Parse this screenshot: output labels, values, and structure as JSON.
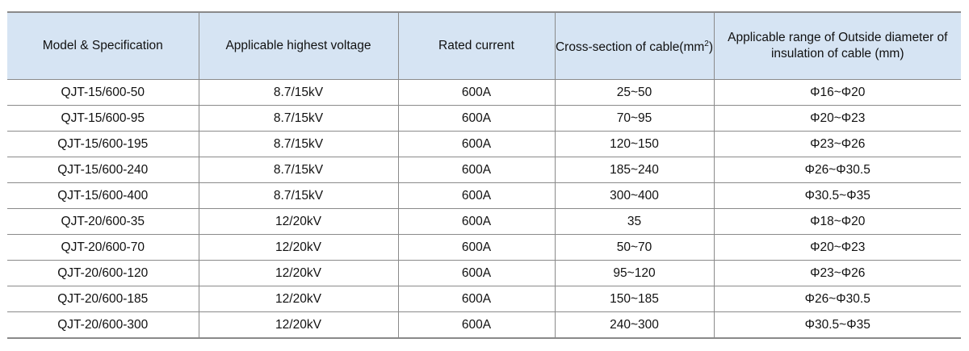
{
  "table": {
    "headers": [
      "Model & Specification",
      "Applicable highest voltage",
      "Rated current",
      "Cross-section of cable(mm",
      "Applicable range of Outside diameter of insulation of cable (mm)"
    ],
    "header_sup": "2",
    "header_tail": ")",
    "rows": [
      [
        "QJT-15/600-50",
        "8.7/15kV",
        "600A",
        "25~50",
        "Φ16~Φ20"
      ],
      [
        "QJT-15/600-95",
        "8.7/15kV",
        "600A",
        "70~95",
        "Φ20~Φ23"
      ],
      [
        "QJT-15/600-195",
        "8.7/15kV",
        "600A",
        "120~150",
        "Φ23~Φ26"
      ],
      [
        "QJT-15/600-240",
        "8.7/15kV",
        "600A",
        "185~240",
        "Φ26~Φ30.5"
      ],
      [
        "QJT-15/600-400",
        "8.7/15kV",
        "600A",
        "300~400",
        "Φ30.5~Φ35"
      ],
      [
        "QJT-20/600-35",
        "12/20kV",
        "600A",
        "35",
        "Φ18~Φ20"
      ],
      [
        "QJT-20/600-70",
        "12/20kV",
        "600A",
        "50~70",
        "Φ20~Φ23"
      ],
      [
        "QJT-20/600-120",
        "12/20kV",
        "600A",
        "95~120",
        "Φ23~Φ26"
      ],
      [
        "QJT-20/600-185",
        "12/20kV",
        "600A",
        "150~185",
        "Φ26~Φ30.5"
      ],
      [
        "QJT-20/600-300",
        "12/20kV",
        "600A",
        "240~300",
        "Φ30.5~Φ35"
      ]
    ]
  }
}
